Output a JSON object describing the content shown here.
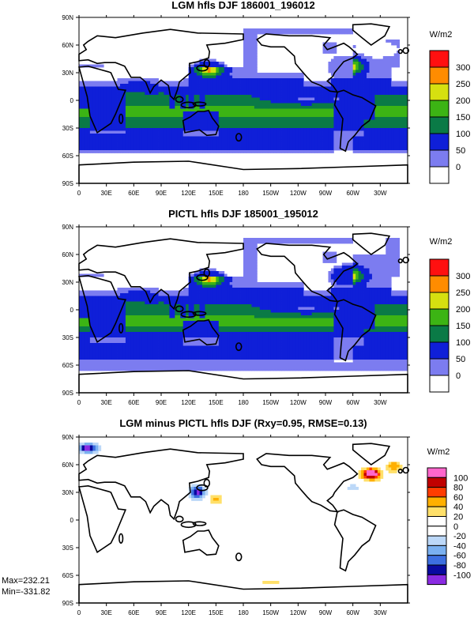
{
  "palette": {
    "abs": [
      "#ffffff",
      "#7c7cf0",
      "#0f1fd8",
      "#0a7a46",
      "#3cb414",
      "#d6e010",
      "#ff8c00",
      "#ff1010"
    ],
    "diff": [
      "#8a2be2",
      "#0a0aa0",
      "#3d6fe0",
      "#7ab0f0",
      "#bcd8f8",
      "#ffffff",
      "#ffffff",
      "#ffe06a",
      "#ffb000",
      "#ff3c00",
      "#c00000",
      "#ff66cc"
    ]
  },
  "chart_data": [
    {
      "type": "heatmap",
      "title": "LGM hfls DJF 186001_196012",
      "units": "W/m2",
      "x_ticks": [
        "0",
        "30E",
        "60E",
        "90E",
        "120E",
        "150E",
        "180",
        "150W",
        "120W",
        "90W",
        "60W",
        "30W"
      ],
      "y_ticks": [
        "90N",
        "60N",
        "30N",
        "0",
        "30S",
        "60S",
        "90S"
      ],
      "colorbar_labels": [
        "300",
        "250",
        "200",
        "150",
        "100",
        "50",
        "0"
      ],
      "levels": [
        0,
        50,
        100,
        150,
        200,
        250,
        300
      ]
    },
    {
      "type": "heatmap",
      "title": "PICTL hfls DJF 185001_195012",
      "units": "W/m2",
      "x_ticks": [
        "0",
        "30E",
        "60E",
        "90E",
        "120E",
        "150E",
        "180",
        "150W",
        "120W",
        "90W",
        "60W",
        "30W"
      ],
      "y_ticks": [
        "90N",
        "60N",
        "30N",
        "0",
        "30S",
        "60S",
        "90S"
      ],
      "colorbar_labels": [
        "300",
        "250",
        "200",
        "150",
        "100",
        "50",
        "0"
      ],
      "levels": [
        0,
        50,
        100,
        150,
        200,
        250,
        300
      ]
    },
    {
      "type": "heatmap",
      "title": "LGM minus PICTL hfls DJF (Rxy=0.95, RMSE=0.13)",
      "units": "W/m2",
      "x_ticks": [
        "0",
        "30E",
        "60E",
        "90E",
        "120E",
        "150E",
        "180",
        "150W",
        "120W",
        "90W",
        "60W",
        "30W"
      ],
      "y_ticks": [
        "90N",
        "60N",
        "30N",
        "0",
        "30S",
        "60S",
        "90S"
      ],
      "colorbar_labels": [
        "100",
        "80",
        "60",
        "40",
        "20",
        "0",
        "-20",
        "-40",
        "-60",
        "-80",
        "-100"
      ],
      "levels": [
        -100,
        -80,
        -60,
        -40,
        -20,
        0,
        20,
        40,
        60,
        80,
        100
      ],
      "max_label": "Max=232.21",
      "min_label": "Min=-331.82"
    }
  ]
}
